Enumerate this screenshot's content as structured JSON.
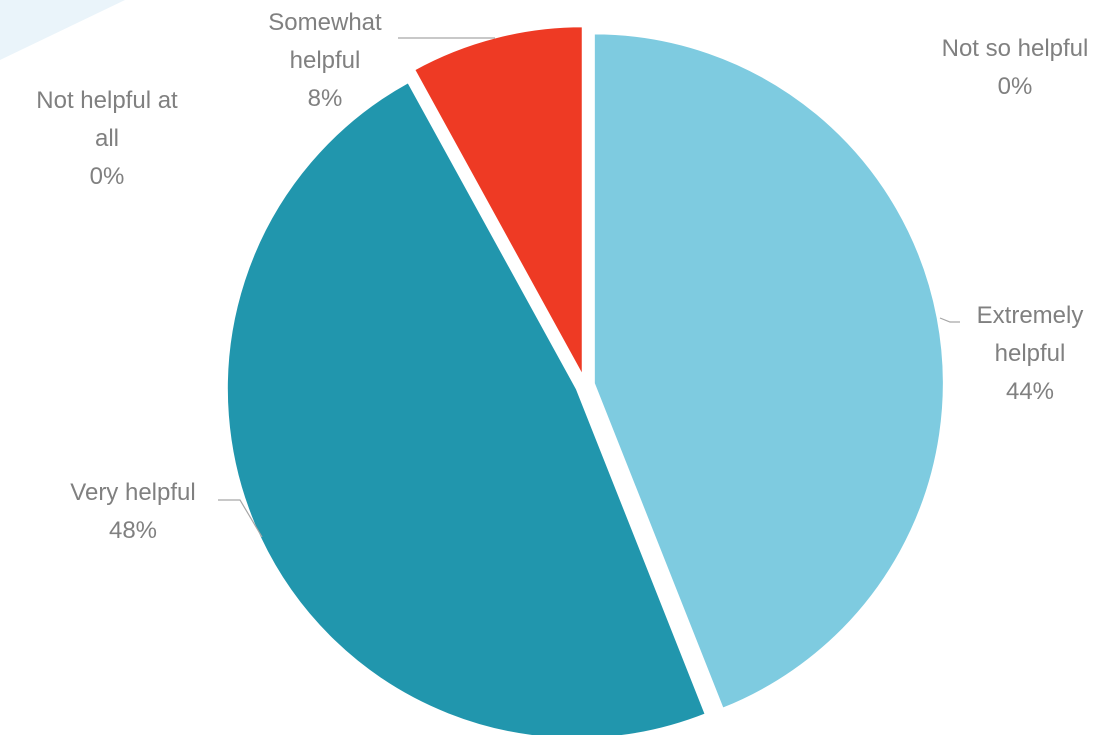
{
  "chart_data": {
    "type": "pie",
    "title": "",
    "slices": [
      {
        "label": "Extremely helpful",
        "value": 44,
        "display": "44%",
        "color": "#7ecbe0",
        "label_lines": [
          "Extremely",
          "helpful",
          "44%"
        ]
      },
      {
        "label": "Very helpful",
        "value": 48,
        "display": "48%",
        "color": "#2196ad",
        "label_lines": [
          "Very helpful",
          "48%"
        ]
      },
      {
        "label": "Not helpful at all",
        "value": 0,
        "display": "0%",
        "color": "#2196ad",
        "label_lines": [
          "Not helpful at",
          "all",
          "0%"
        ]
      },
      {
        "label": "Somewhat helpful",
        "value": 8,
        "display": "8%",
        "color": "#ee3a24",
        "label_lines": [
          "Somewhat",
          "helpful",
          "8%"
        ]
      },
      {
        "label": "Not so helpful",
        "value": 0,
        "display": "0%",
        "color": "#ee3a24",
        "label_lines": [
          "Not so helpful",
          "0%"
        ]
      }
    ],
    "background_accent": "#eaf4fa"
  }
}
